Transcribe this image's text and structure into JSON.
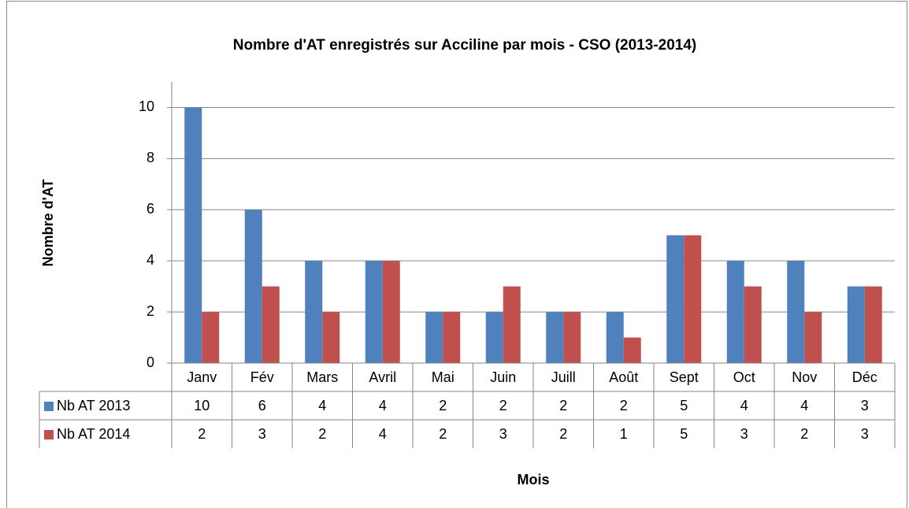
{
  "chart_data": {
    "type": "bar",
    "title": "Nombre d'AT enregistrés sur Acciline par mois - CSO (2013-2014)",
    "y_label": "Nombre d'AT",
    "x_label": "Mois",
    "categories": [
      "Janv",
      "Fév",
      "Mars",
      "Avril",
      "Mai",
      "Juin",
      "Juill",
      "Août",
      "Sept",
      "Oct",
      "Nov",
      "Déc"
    ],
    "series": [
      {
        "name": "Nb AT 2013",
        "color": "#4f81bd",
        "values": [
          10,
          6,
          4,
          4,
          2,
          2,
          2,
          2,
          5,
          4,
          4,
          3
        ]
      },
      {
        "name": "Nb AT 2014",
        "color": "#c0504d",
        "values": [
          2,
          3,
          2,
          4,
          2,
          3,
          2,
          1,
          5,
          3,
          2,
          3
        ]
      }
    ],
    "ylim": [
      0,
      11
    ],
    "yticks": [
      0,
      2,
      4,
      6,
      8,
      10
    ],
    "grid": true
  }
}
